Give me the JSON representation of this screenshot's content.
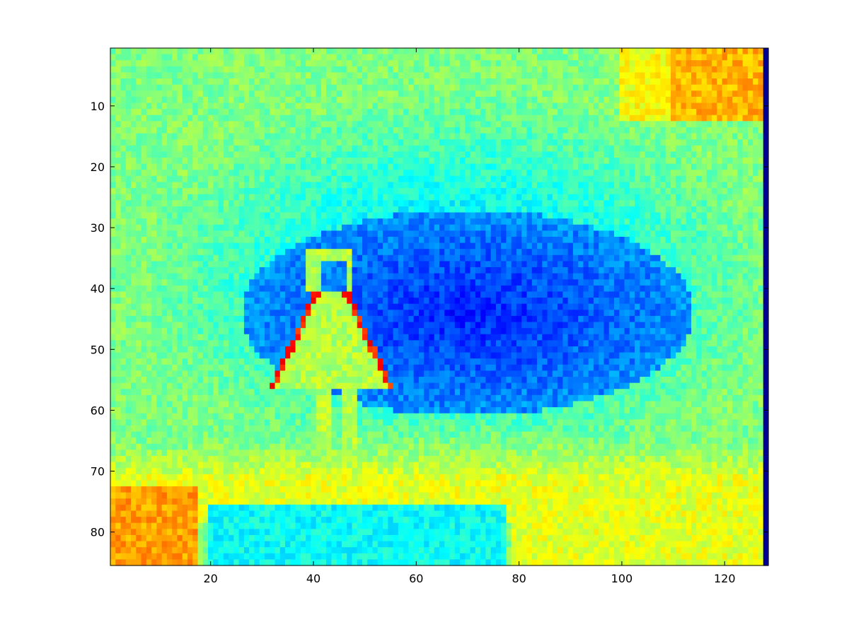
{
  "chart_data": {
    "type": "heatmap",
    "colormap": "jet",
    "xlim": [
      0.5,
      128.5
    ],
    "ylim": [
      0.5,
      85.5
    ],
    "y_reversed": true,
    "grid": false,
    "xticks": [
      20,
      40,
      60,
      80,
      100,
      120
    ],
    "yticks": [
      10,
      20,
      30,
      40,
      50,
      60,
      70,
      80
    ],
    "xtick_labels": [
      "20",
      "40",
      "60",
      "80",
      "100",
      "120"
    ],
    "ytick_labels": [
      "10",
      "20",
      "30",
      "40",
      "50",
      "60",
      "70",
      "80"
    ],
    "value_range": [
      0,
      1
    ],
    "grid_size": {
      "cols": 128,
      "rows": 85
    },
    "regions": {
      "dark_ellipse": {
        "cx": 70,
        "cy": 44,
        "rx": 44,
        "ry": 17,
        "value": 0.15
      },
      "mid_ellipse": {
        "cx": 68,
        "cy": 39,
        "rx": 63,
        "ry": 32,
        "value": 0.3
      },
      "top_right_hot": {
        "x": [
          100,
          128
        ],
        "y": [
          1,
          12
        ],
        "value": 0.7
      },
      "bottom_left_hot": {
        "x": [
          1,
          17
        ],
        "y": [
          73,
          85
        ],
        "value": 0.72
      },
      "bottom_strip": {
        "x": [
          1,
          128
        ],
        "y": [
          71,
          78
        ],
        "value": 0.6
      },
      "bottom_mid_cool": {
        "x": [
          20,
          77
        ],
        "y": [
          76,
          85
        ],
        "value": 0.38
      },
      "bottom_right_warm": {
        "x": [
          79,
          128
        ],
        "y": [
          77,
          85
        ],
        "value": 0.6
      },
      "right_edge_column": {
        "x": [
          128,
          128
        ],
        "y": [
          1,
          85
        ],
        "value": 0.02
      },
      "figure": {
        "x": [
          33,
          53
        ],
        "y": [
          33,
          68
        ],
        "value": 0.55,
        "edge_value": 0.85
      }
    }
  }
}
